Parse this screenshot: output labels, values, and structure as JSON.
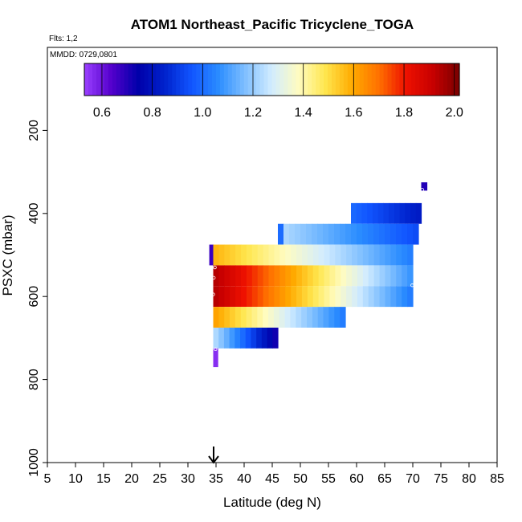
{
  "chart_data": {
    "type": "heatmap",
    "title": "ATOM1 Northeast_Pacific Tricyclene_TOGA",
    "flights_label": "Flts: 1,2",
    "dates_label": "MMDD: 0729,0801",
    "xlabel": "Latitude (deg N)",
    "ylabel": "PSXC (mbar)",
    "xlim": [
      5,
      85
    ],
    "ylim": [
      1000,
      0
    ],
    "x_ticks": [
      5,
      10,
      15,
      20,
      25,
      30,
      35,
      40,
      45,
      50,
      55,
      60,
      65,
      70,
      75,
      80,
      85
    ],
    "y_ticks": [
      200,
      400,
      600,
      800,
      1000
    ],
    "colorbar": {
      "min": 0.53,
      "max": 2.02,
      "ticks": [
        0.6,
        0.8,
        1.0,
        1.2,
        1.4,
        1.6,
        1.8,
        2.0
      ],
      "tick_labels": [
        "0.6",
        "0.8",
        "1.0",
        "1.2",
        "1.4",
        "1.6",
        "1.8",
        "2.0"
      ],
      "colors": [
        "#9a40ff",
        "#5500cc",
        "#0000aa",
        "#0022cc",
        "#1155ff",
        "#2a8cff",
        "#7fbfff",
        "#d2ecff",
        "#fffcc0",
        "#ffe64d",
        "#ffaa00",
        "#ff7000",
        "#ee1100",
        "#c80000",
        "#7a0000"
      ]
    },
    "marker_latitude": 35,
    "rows": [
      {
        "pressure": [
          325,
          345
        ],
        "segments": [
          {
            "lat": [
              71.5,
              72.5
            ],
            "values": [
              0.7,
              0.7
            ]
          }
        ]
      },
      {
        "pressure": [
          375,
          425
        ],
        "segments": [
          {
            "lat": [
              59,
              71.5
            ],
            "values": [
              1.0,
              0.82
            ]
          }
        ]
      },
      {
        "pressure": [
          425,
          475
        ],
        "segments": [
          {
            "lat": [
              46,
              47
            ],
            "values": [
              1.0,
              1.0
            ]
          },
          {
            "lat": [
              47,
              71
            ],
            "values": [
              1.23,
              0.93
            ]
          }
        ]
      },
      {
        "pressure": [
          475,
          525
        ],
        "segments": [
          {
            "lat": [
              33.8,
              34.5
            ],
            "values": [
              0.67,
              0.67
            ]
          },
          {
            "lat": [
              34.5,
              70
            ],
            "values": [
              1.58,
              1.03
            ]
          }
        ]
      },
      {
        "pressure": [
          525,
          575
        ],
        "segments": [
          {
            "lat": [
              34.5,
              70
            ],
            "values": [
              1.95,
              1.07
            ]
          }
        ]
      },
      {
        "pressure": [
          575,
          625
        ],
        "segments": [
          {
            "lat": [
              34.5,
              70
            ],
            "values": [
              1.95,
              1.02
            ]
          }
        ]
      },
      {
        "pressure": [
          625,
          675
        ],
        "segments": [
          {
            "lat": [
              34.5,
              58
            ],
            "values": [
              1.62,
              1.02
            ]
          }
        ]
      },
      {
        "pressure": [
          675,
          725
        ],
        "segments": [
          {
            "lat": [
              34.5,
              46
            ],
            "values": [
              1.25,
              0.7
            ]
          }
        ]
      },
      {
        "pressure": [
          725,
          770
        ],
        "segments": [
          {
            "lat": [
              34.5,
              35.3
            ],
            "values": [
              0.56,
              0.56
            ]
          }
        ]
      }
    ],
    "sample_points": [
      {
        "lat": 34.8,
        "pressure": 530
      },
      {
        "lat": 34.6,
        "pressure": 555
      },
      {
        "lat": 34.5,
        "pressure": 595
      },
      {
        "lat": 34.9,
        "pressure": 727
      },
      {
        "lat": 71.7,
        "pressure": 343
      },
      {
        "lat": 69.9,
        "pressure": 573
      }
    ]
  }
}
